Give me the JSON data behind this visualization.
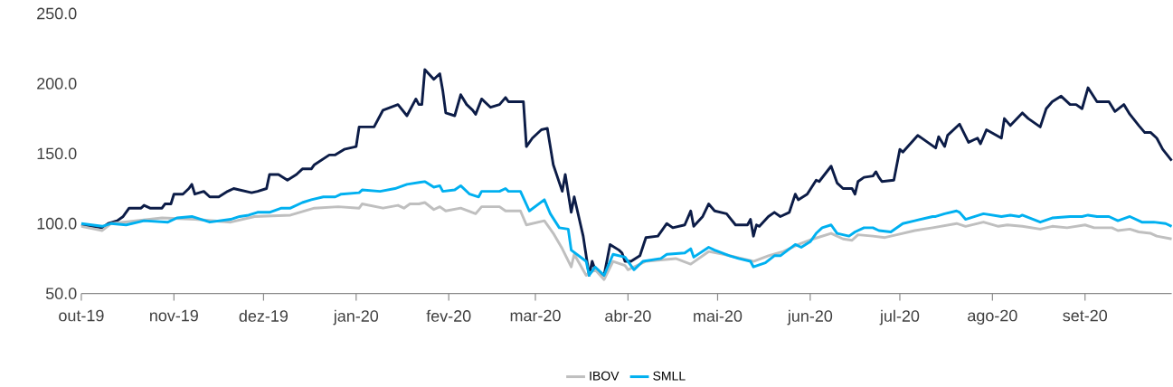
{
  "chart_data": {
    "type": "line",
    "legend": "bottom",
    "line_style": "solid",
    "xlim": [
      "2019-10-01",
      "2020-09-30"
    ],
    "xticks": [
      {
        "value": "2019-10-01",
        "label": "out-19"
      },
      {
        "value": "2019-11-01",
        "label": "nov-19"
      },
      {
        "value": "2019-12-01",
        "label": "dez-19"
      },
      {
        "value": "2020-01-01",
        "label": "jan-20"
      },
      {
        "value": "2020-02-01",
        "label": "fev-20"
      },
      {
        "value": "2020-03-01",
        "label": "mar-20"
      },
      {
        "value": "2020-04-01",
        "label": "abr-20"
      },
      {
        "value": "2020-05-01",
        "label": "mai-20"
      },
      {
        "value": "2020-06-01",
        "label": "jun-20"
      },
      {
        "value": "2020-07-01",
        "label": "jul-20"
      },
      {
        "value": "2020-08-01",
        "label": "ago-20"
      },
      {
        "value": "2020-09-01",
        "label": "set-20"
      }
    ],
    "ylim": [
      50,
      250
    ],
    "yticks": [
      {
        "value": 50,
        "label": "50.0"
      },
      {
        "value": 100,
        "label": "100.0"
      },
      {
        "value": 150,
        "label": "150.0"
      },
      {
        "value": 200,
        "label": "200.0"
      },
      {
        "value": 250,
        "label": "250.0"
      }
    ],
    "series": [
      {
        "color": "#0c1c47",
        "x": [
          "2019-10-01",
          "2019-10-08",
          "2019-10-10",
          "2019-10-13",
          "2019-10-15",
          "2019-10-17",
          "2019-10-21",
          "2019-10-22",
          "2019-10-24",
          "2019-10-28",
          "2019-10-29",
          "2019-10-31",
          "2019-11-01",
          "2019-11-04",
          "2019-11-06",
          "2019-11-07",
          "2019-11-08",
          "2019-11-11",
          "2019-11-13",
          "2019-11-16",
          "2019-11-19",
          "2019-11-21",
          "2019-11-27",
          "2019-11-29",
          "2019-12-02",
          "2019-12-03",
          "2019-12-06",
          "2019-12-09",
          "2019-12-12",
          "2019-12-14",
          "2019-12-17",
          "2019-12-18",
          "2019-12-23",
          "2019-12-25",
          "2019-12-28",
          "2020-01-01",
          "2020-01-02",
          "2020-01-07",
          "2020-01-10",
          "2020-01-15",
          "2020-01-18",
          "2020-01-21",
          "2020-01-22",
          "2020-01-23",
          "2020-01-24",
          "2020-01-27",
          "2020-01-29",
          "2020-01-30",
          "2020-01-31",
          "2020-02-03",
          "2020-02-05",
          "2020-02-07",
          "2020-02-09",
          "2020-02-10",
          "2020-02-12",
          "2020-02-15",
          "2020-02-18",
          "2020-02-20",
          "2020-02-21",
          "2020-02-26",
          "2020-02-27",
          "2020-02-29",
          "2020-03-03",
          "2020-03-05",
          "2020-03-07",
          "2020-03-10",
          "2020-03-11",
          "2020-03-13",
          "2020-03-14",
          "2020-03-17",
          "2020-03-19",
          "2020-03-20",
          "2020-03-21",
          "2020-03-24",
          "2020-03-26",
          "2020-03-29",
          "2020-03-30",
          "2020-03-31",
          "2020-04-02",
          "2020-04-05",
          "2020-04-07",
          "2020-04-11",
          "2020-04-14",
          "2020-04-16",
          "2020-04-20",
          "2020-04-22",
          "2020-04-23",
          "2020-04-26",
          "2020-04-28",
          "2020-04-30",
          "2020-05-04",
          "2020-05-07",
          "2020-05-11",
          "2020-05-12",
          "2020-05-13",
          "2020-05-14",
          "2020-05-15",
          "2020-05-18",
          "2020-05-20",
          "2020-05-22",
          "2020-05-25",
          "2020-05-27",
          "2020-05-28",
          "2020-05-31",
          "2020-06-03",
          "2020-06-04",
          "2020-06-08",
          "2020-06-10",
          "2020-06-12",
          "2020-06-15",
          "2020-06-16",
          "2020-06-17",
          "2020-06-19",
          "2020-06-22",
          "2020-06-23",
          "2020-06-24",
          "2020-06-25",
          "2020-06-29",
          "2020-07-01",
          "2020-07-02",
          "2020-07-07",
          "2020-07-13",
          "2020-07-14",
          "2020-07-16",
          "2020-07-17",
          "2020-07-21",
          "2020-07-24",
          "2020-07-27",
          "2020-07-28",
          "2020-07-30",
          "2020-08-04",
          "2020-08-05",
          "2020-08-07",
          "2020-08-11",
          "2020-08-13",
          "2020-08-17",
          "2020-08-19",
          "2020-08-21",
          "2020-08-24",
          "2020-08-27",
          "2020-08-29",
          "2020-08-31",
          "2020-09-02",
          "2020-09-05",
          "2020-09-09",
          "2020-09-11",
          "2020-09-14",
          "2020-09-16",
          "2020-09-19",
          "2020-09-21",
          "2020-09-23",
          "2020-09-25",
          "2020-09-27",
          "2020-09-30"
        ],
        "values": [
          99,
          97,
          100,
          102,
          105,
          111,
          111,
          113,
          111,
          111,
          114,
          114,
          121,
          121,
          125,
          128,
          121,
          123,
          119,
          119,
          123,
          125,
          122,
          123,
          125,
          135,
          135,
          131,
          135,
          139,
          139,
          142,
          149,
          149,
          153,
          155,
          169,
          169,
          181,
          185,
          177,
          189,
          185,
          185,
          210,
          203,
          207,
          195,
          179,
          177,
          192,
          185,
          181,
          178,
          189,
          183,
          185,
          190,
          187,
          187,
          155,
          161,
          167,
          168,
          142,
          123,
          135,
          108,
          119,
          91,
          63,
          73,
          67,
          63,
          85,
          81,
          79,
          73,
          73,
          77,
          90,
          91,
          100,
          97,
          99,
          109,
          98,
          105,
          114,
          109,
          107,
          99,
          99,
          103,
          91,
          99,
          98,
          105,
          108,
          105,
          108,
          121,
          117,
          121,
          131,
          130,
          141,
          129,
          125,
          125,
          121,
          130,
          133,
          134,
          137,
          133,
          130,
          131,
          153,
          151,
          163,
          154,
          162,
          155,
          163,
          171,
          158,
          161,
          157,
          167,
          161,
          175,
          170,
          179,
          175,
          169,
          182,
          187,
          191,
          185,
          185,
          182,
          197,
          187,
          187,
          180,
          185,
          178,
          170,
          165,
          165,
          161,
          153,
          145
        ]
      },
      {
        "name": "IBOV",
        "color": "#bfbfbf",
        "x": [
          "2019-10-01",
          "2019-10-08",
          "2019-10-11",
          "2019-10-28",
          "2019-11-08",
          "2019-11-20",
          "2019-11-28",
          "2019-12-10",
          "2019-12-18",
          "2019-12-26",
          "2020-01-02",
          "2020-01-03",
          "2020-01-10",
          "2020-01-15",
          "2020-01-17",
          "2020-01-19",
          "2020-01-22",
          "2020-01-24",
          "2020-01-27",
          "2020-01-29",
          "2020-01-31",
          "2020-02-05",
          "2020-02-10",
          "2020-02-12",
          "2020-02-18",
          "2020-02-20",
          "2020-02-25",
          "2020-02-27",
          "2020-03-04",
          "2020-03-07",
          "2020-03-10",
          "2020-03-13",
          "2020-03-14",
          "2020-03-18",
          "2020-03-21",
          "2020-03-24",
          "2020-03-27",
          "2020-03-31",
          "2020-04-01",
          "2020-04-07",
          "2020-04-17",
          "2020-04-22",
          "2020-04-28",
          "2020-05-03",
          "2020-05-13",
          "2020-05-18",
          "2020-05-23",
          "2020-05-28",
          "2020-06-02",
          "2020-06-08",
          "2020-06-12",
          "2020-06-15",
          "2020-06-17",
          "2020-06-22",
          "2020-06-26",
          "2020-06-30",
          "2020-07-06",
          "2020-07-12",
          "2020-07-20",
          "2020-07-23",
          "2020-07-29",
          "2020-08-03",
          "2020-08-06",
          "2020-08-11",
          "2020-08-17",
          "2020-08-21",
          "2020-08-26",
          "2020-09-01",
          "2020-09-04",
          "2020-09-10",
          "2020-09-12",
          "2020-09-16",
          "2020-09-19",
          "2020-09-23",
          "2020-09-25",
          "2020-09-30"
        ],
        "values": [
          98,
          95,
          100,
          104,
          103,
          101,
          105,
          106,
          111,
          112,
          111,
          114,
          111,
          113,
          111,
          114,
          114,
          115,
          110,
          112,
          109,
          111,
          107,
          112,
          112,
          109,
          109,
          99,
          102,
          93,
          82,
          69,
          78,
          63,
          67,
          60,
          73,
          70,
          67,
          73,
          75,
          71,
          80,
          78,
          73,
          77,
          80,
          85,
          89,
          93,
          89,
          88,
          92,
          91,
          90,
          92,
          95,
          97,
          100,
          98,
          101,
          98,
          99,
          98,
          96,
          98,
          97,
          99,
          97,
          97,
          95,
          96,
          94,
          93,
          91,
          89
        ]
      },
      {
        "name": "SMLL",
        "color": "#00b0f0",
        "x": [
          "2019-10-01",
          "2019-10-08",
          "2019-10-11",
          "2019-10-16",
          "2019-10-22",
          "2019-10-30",
          "2019-11-02",
          "2019-11-07",
          "2019-11-13",
          "2019-11-20",
          "2019-11-23",
          "2019-11-26",
          "2019-11-29",
          "2019-12-03",
          "2019-12-07",
          "2019-12-10",
          "2019-12-14",
          "2019-12-17",
          "2019-12-21",
          "2019-12-25",
          "2019-12-27",
          "2020-01-02",
          "2020-01-03",
          "2020-01-09",
          "2020-01-14",
          "2020-01-18",
          "2020-01-24",
          "2020-01-27",
          "2020-01-29",
          "2020-01-30",
          "2020-02-03",
          "2020-02-05",
          "2020-02-08",
          "2020-02-11",
          "2020-02-12",
          "2020-02-18",
          "2020-02-20",
          "2020-02-21",
          "2020-02-25",
          "2020-02-28",
          "2020-03-04",
          "2020-03-06",
          "2020-03-09",
          "2020-03-12",
          "2020-03-13",
          "2020-03-18",
          "2020-03-19",
          "2020-03-21",
          "2020-03-24",
          "2020-03-27",
          "2020-03-31",
          "2020-04-03",
          "2020-04-06",
          "2020-04-12",
          "2020-04-14",
          "2020-04-20",
          "2020-04-22",
          "2020-04-23",
          "2020-04-28",
          "2020-04-30",
          "2020-05-05",
          "2020-05-08",
          "2020-05-12",
          "2020-05-13",
          "2020-05-17",
          "2020-05-20",
          "2020-05-22",
          "2020-05-27",
          "2020-05-29",
          "2020-06-01",
          "2020-06-03",
          "2020-06-05",
          "2020-06-08",
          "2020-06-10",
          "2020-06-12",
          "2020-06-14",
          "2020-06-16",
          "2020-06-19",
          "2020-06-22",
          "2020-06-24",
          "2020-06-28",
          "2020-07-02",
          "2020-07-06",
          "2020-07-12",
          "2020-07-13",
          "2020-07-16",
          "2020-07-20",
          "2020-07-21",
          "2020-07-23",
          "2020-07-26",
          "2020-07-29",
          "2020-08-04",
          "2020-08-07",
          "2020-08-10",
          "2020-08-11",
          "2020-08-17",
          "2020-08-21",
          "2020-08-27",
          "2020-08-31",
          "2020-09-02",
          "2020-09-05",
          "2020-09-09",
          "2020-09-12",
          "2020-09-16",
          "2020-09-20",
          "2020-09-24",
          "2020-09-28",
          "2020-09-30"
        ],
        "values": [
          100,
          98,
          100,
          99,
          102,
          101,
          104,
          105,
          101,
          103,
          105,
          106,
          108,
          108,
          111,
          111,
          115,
          117,
          119,
          119,
          121,
          122,
          124,
          123,
          125,
          128,
          130,
          126,
          127,
          123,
          124,
          127,
          121,
          119,
          123,
          123,
          125,
          123,
          123,
          109,
          117,
          107,
          97,
          96,
          81,
          73,
          63,
          69,
          63,
          78,
          76,
          67,
          73,
          75,
          78,
          79,
          82,
          76,
          83,
          81,
          77,
          75,
          73,
          69,
          72,
          77,
          77,
          85,
          83,
          87,
          93,
          97,
          99,
          93,
          92,
          91,
          94,
          97,
          97,
          95,
          94,
          100,
          102,
          105,
          105,
          107,
          109,
          108,
          103,
          105,
          107,
          105,
          106,
          105,
          106,
          101,
          104,
          105,
          105,
          106,
          105,
          105,
          102,
          105,
          101,
          101,
          100,
          98
        ]
      }
    ]
  }
}
